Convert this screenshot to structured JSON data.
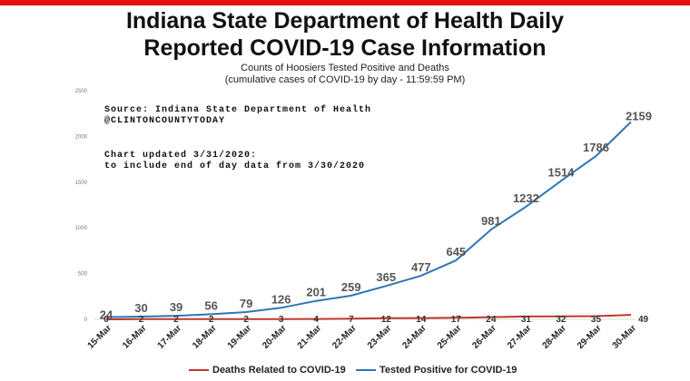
{
  "chart_data": {
    "type": "line",
    "title_line1": "Indiana State Department of Health Daily",
    "title_line2": "Reported COVID-19 Case Information",
    "subtitle_line1": "Counts of Hoosiers Tested Positive and Deaths",
    "subtitle_line2": "(cumulative cases of COVID-19 by day - 11:59:59 PM)",
    "annotations": [
      "Source: Indiana State Department of Health",
      "@CLINTONCOUNTYTODAY",
      "Chart updated 3/31/2020:",
      "to include end of day data from 3/30/2020"
    ],
    "categories": [
      "15-Mar",
      "16-Mar",
      "17-Mar",
      "18-Mar",
      "19-Mar",
      "20-Mar",
      "21-Mar",
      "22-Mar",
      "23-Mar",
      "24-Mar",
      "25-Mar",
      "26-Mar",
      "27-Mar",
      "28-Mar",
      "29-Mar",
      "30-Mar"
    ],
    "series": [
      {
        "name": "Deaths Related to COVID-19",
        "color": "#c0392b",
        "values": [
          0,
          2,
          2,
          2,
          2,
          3,
          4,
          7,
          12,
          14,
          17,
          24,
          31,
          32,
          35,
          49
        ]
      },
      {
        "name": "Tested Positive for COVID-19",
        "color": "#2e75b6",
        "values": [
          24,
          30,
          39,
          56,
          79,
          126,
          201,
          259,
          365,
          477,
          645,
          981,
          1232,
          1514,
          1786,
          2159
        ]
      }
    ],
    "ylim": [
      0,
      2500
    ],
    "yticks": [
      0,
      500,
      1000,
      1500,
      2000,
      2500
    ],
    "grid": false,
    "legend": "bottom"
  }
}
